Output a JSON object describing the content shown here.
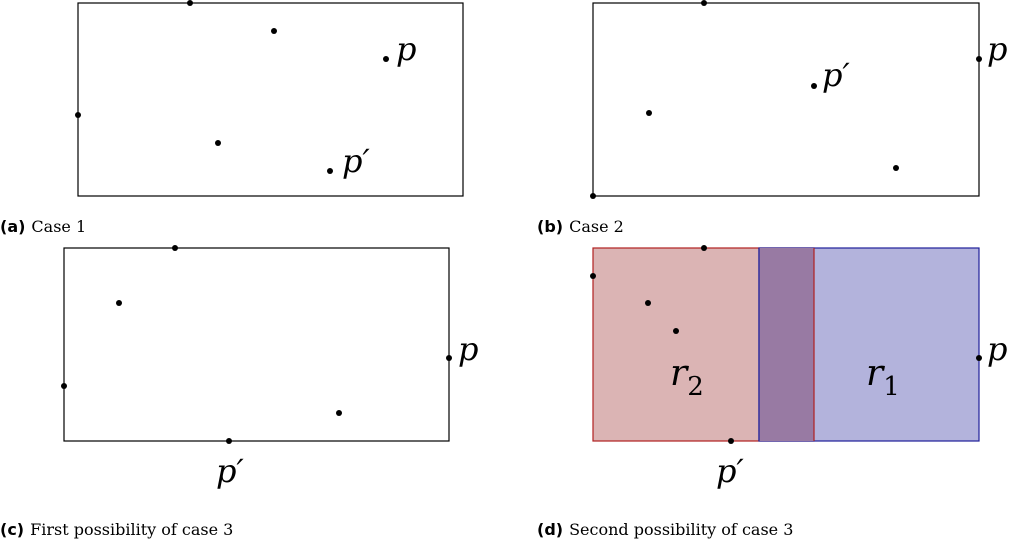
{
  "panels": {
    "a": {
      "tag": "(a)",
      "caption": "Case 1",
      "labels": {
        "p": "p",
        "p_prime": "p′"
      }
    },
    "b": {
      "tag": "(b)",
      "caption": "Case 2",
      "labels": {
        "p": "p",
        "p_prime": "p′"
      }
    },
    "c": {
      "tag": "(c)",
      "caption": "First possibility of case 3",
      "labels": {
        "p": "p",
        "p_prime": "p′"
      }
    },
    "d": {
      "tag": "(d)",
      "caption": "Second possibility of case 3",
      "labels": {
        "p": "p",
        "p_prime": "p′",
        "r1": "r",
        "r1_sub": "1",
        "r2": "r",
        "r2_sub": "2"
      },
      "colors": {
        "r2_fill": "#dbb4b4",
        "r2_stroke": "#b02020",
        "r1_fill": "#b3b3dc",
        "r1_stroke": "#1f1f9a",
        "overlap_fill": "#987aa3"
      }
    }
  }
}
